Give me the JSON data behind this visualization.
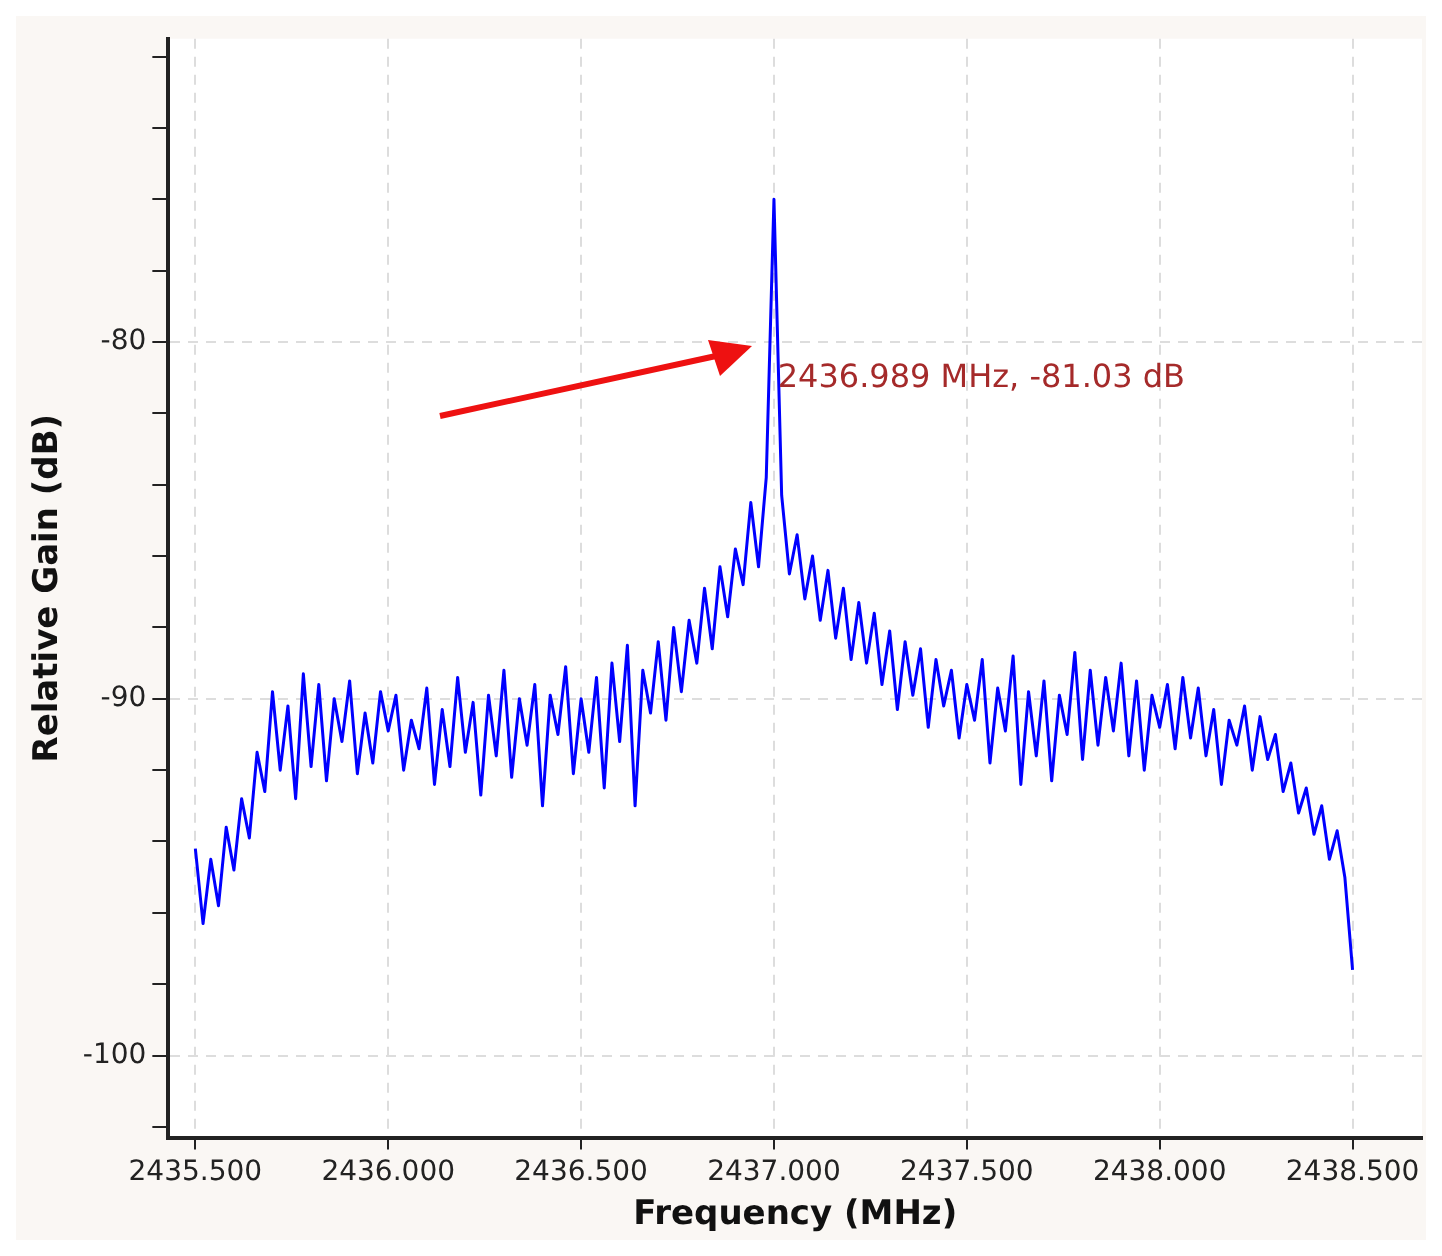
{
  "chart_data": {
    "type": "line",
    "xlabel": "Frequency (MHz)",
    "ylabel": "Relative Gain (dB)",
    "x": [
      2435.5,
      2435.52,
      2435.54,
      2435.56,
      2435.58,
      2435.6,
      2435.62,
      2435.64,
      2435.66,
      2435.68,
      2435.7,
      2435.72,
      2435.74,
      2435.76,
      2435.78,
      2435.8,
      2435.82,
      2435.84,
      2435.86,
      2435.88,
      2435.9,
      2435.92,
      2435.94,
      2435.96,
      2435.98,
      2436.0,
      2436.02,
      2436.04,
      2436.06,
      2436.08,
      2436.1,
      2436.12,
      2436.14,
      2436.16,
      2436.18,
      2436.2,
      2436.22,
      2436.24,
      2436.26,
      2436.28,
      2436.3,
      2436.32,
      2436.34,
      2436.36,
      2436.38,
      2436.4,
      2436.42,
      2436.44,
      2436.46,
      2436.48,
      2436.5,
      2436.52,
      2436.54,
      2436.56,
      2436.58,
      2436.6,
      2436.62,
      2436.64,
      2436.66,
      2436.68,
      2436.7,
      2436.72,
      2436.74,
      2436.76,
      2436.78,
      2436.8,
      2436.82,
      2436.84,
      2436.86,
      2436.88,
      2436.9,
      2436.92,
      2436.94,
      2436.96,
      2436.98,
      2437.0,
      2437.02,
      2437.04,
      2437.06,
      2437.08,
      2437.1,
      2437.12,
      2437.14,
      2437.16,
      2437.18,
      2437.2,
      2437.22,
      2437.24,
      2437.26,
      2437.28,
      2437.3,
      2437.32,
      2437.34,
      2437.36,
      2437.38,
      2437.4,
      2437.42,
      2437.44,
      2437.46,
      2437.48,
      2437.5,
      2437.52,
      2437.54,
      2437.56,
      2437.58,
      2437.6,
      2437.62,
      2437.64,
      2437.66,
      2437.68,
      2437.7,
      2437.72,
      2437.74,
      2437.76,
      2437.78,
      2437.8,
      2437.82,
      2437.84,
      2437.86,
      2437.88,
      2437.9,
      2437.92,
      2437.94,
      2437.96,
      2437.98,
      2438.0,
      2438.02,
      2438.04,
      2438.06,
      2438.08,
      2438.1,
      2438.12,
      2438.14,
      2438.16,
      2438.18,
      2438.2,
      2438.22,
      2438.24,
      2438.26,
      2438.28,
      2438.3,
      2438.32,
      2438.34,
      2438.36,
      2438.38,
      2438.4,
      2438.42,
      2438.44,
      2438.46,
      2438.48,
      2438.5
    ],
    "series": [
      {
        "color": "#0000ff",
        "values": [
          -94.2,
          -96.3,
          -94.5,
          -95.8,
          -93.6,
          -94.8,
          -92.8,
          -93.9,
          -91.5,
          -92.6,
          -89.8,
          -92.0,
          -90.2,
          -92.8,
          -89.3,
          -91.9,
          -89.6,
          -92.3,
          -90.0,
          -91.2,
          -89.5,
          -92.1,
          -90.4,
          -91.8,
          -89.8,
          -90.9,
          -89.9,
          -92.0,
          -90.6,
          -91.4,
          -89.7,
          -92.4,
          -90.3,
          -91.9,
          -89.4,
          -91.5,
          -90.1,
          -92.7,
          -89.9,
          -91.6,
          -89.2,
          -92.2,
          -90.0,
          -91.3,
          -89.6,
          -93.0,
          -89.9,
          -91.0,
          -89.1,
          -92.1,
          -90.0,
          -91.5,
          -89.4,
          -92.5,
          -89.0,
          -91.2,
          -88.5,
          -93.0,
          -89.2,
          -90.4,
          -88.4,
          -90.6,
          -88.0,
          -89.8,
          -87.8,
          -89.0,
          -86.9,
          -88.6,
          -86.3,
          -87.7,
          -85.8,
          -86.8,
          -84.5,
          -86.3,
          -83.8,
          -76.0,
          -84.3,
          -86.5,
          -85.4,
          -87.2,
          -86.0,
          -87.8,
          -86.4,
          -88.3,
          -86.9,
          -88.9,
          -87.3,
          -89.0,
          -87.6,
          -89.6,
          -88.1,
          -90.3,
          -88.4,
          -89.9,
          -88.6,
          -90.8,
          -88.9,
          -90.2,
          -89.2,
          -91.1,
          -89.6,
          -90.6,
          -88.9,
          -91.8,
          -89.7,
          -90.9,
          -88.8,
          -92.4,
          -89.8,
          -91.6,
          -89.5,
          -92.3,
          -89.9,
          -91.0,
          -88.7,
          -91.7,
          -89.2,
          -91.3,
          -89.4,
          -90.9,
          -89.0,
          -91.6,
          -89.5,
          -92.0,
          -89.9,
          -90.8,
          -89.6,
          -91.4,
          -89.4,
          -91.1,
          -89.7,
          -91.6,
          -90.3,
          -92.4,
          -90.6,
          -91.3,
          -90.2,
          -92.0,
          -90.5,
          -91.7,
          -91.0,
          -92.6,
          -91.8,
          -93.2,
          -92.5,
          -93.8,
          -93.0,
          -94.5,
          -93.7,
          -95.0,
          -97.6
        ]
      }
    ],
    "xlim": [
      2435.43,
      2438.68
    ],
    "xticks": [
      {
        "value": 2435.5,
        "label": "2435.500"
      },
      {
        "value": 2436,
        "label": "2436.000"
      },
      {
        "value": 2436.5,
        "label": "2436.500"
      },
      {
        "value": 2437,
        "label": "2437.000"
      },
      {
        "value": 2437.5,
        "label": "2437.500"
      },
      {
        "value": 2438,
        "label": "2438.000"
      },
      {
        "value": 2438.5,
        "label": "2438.500"
      }
    ],
    "ylim": [
      -102.3,
      -71.5
    ],
    "yticks": [
      {
        "value": -102,
        "label": null
      },
      -100,
      {
        "value": -98,
        "label": null
      },
      {
        "value": -96,
        "label": null
      },
      {
        "value": -94,
        "label": null
      },
      {
        "value": -92,
        "label": null
      },
      -90,
      {
        "value": -88,
        "label": null
      },
      {
        "value": -86,
        "label": null
      },
      {
        "value": -84,
        "label": null
      },
      {
        "value": -82,
        "label": null
      },
      -80,
      {
        "value": -78,
        "label": null
      },
      {
        "value": -76,
        "label": null
      },
      {
        "value": -74,
        "label": null
      },
      {
        "value": -72,
        "label": null
      }
    ],
    "grid": true,
    "marker": "none",
    "line_style": "solid",
    "legend": false,
    "annotations": [
      {
        "text": "2436.989 MHz, -81.03 dB",
        "x": 2436.989,
        "y": -81.03
      }
    ]
  }
}
